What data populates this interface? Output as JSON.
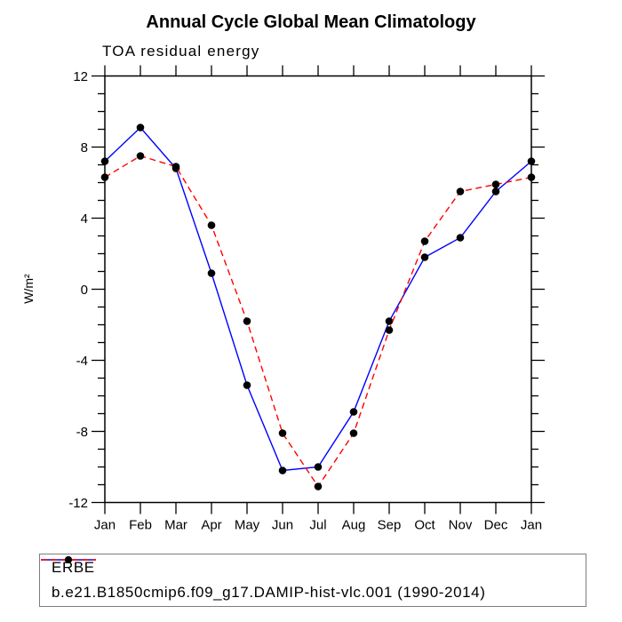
{
  "chart_data": {
    "type": "line",
    "title": "Annual Cycle Global Mean Climatology",
    "subtitle": "TOA residual energy",
    "ylabel": "W/m²",
    "xlabel": "",
    "categories": [
      "Jan",
      "Feb",
      "Mar",
      "Apr",
      "May",
      "Jun",
      "Jul",
      "Aug",
      "Sep",
      "Oct",
      "Nov",
      "Dec",
      "Jan"
    ],
    "ylim": [
      -12,
      12
    ],
    "ytick_major_labels": [
      12,
      8,
      4,
      0,
      -4,
      -8,
      -12
    ],
    "ytick_minor_step": 1,
    "grid": false,
    "legend_position": "bottom",
    "frame_color": "#000000",
    "marker_color": "#000000",
    "series": [
      {
        "name": "ERBE",
        "color": "#0000ff",
        "line_style": "solid",
        "values": [
          7.2,
          9.1,
          6.8,
          0.9,
          -5.4,
          -10.2,
          -10.0,
          -6.9,
          -1.8,
          1.8,
          2.9,
          5.5,
          7.2
        ]
      },
      {
        "name": "b.e21.B1850cmip6.f09_g17.DAMIP-hist-vlc.001 (1990-2014)",
        "color": "#ff0000",
        "line_style": "dashed",
        "values": [
          6.3,
          7.5,
          6.9,
          3.6,
          -1.8,
          -8.1,
          -11.1,
          -8.1,
          -2.3,
          2.7,
          5.5,
          5.9,
          6.3
        ]
      }
    ]
  }
}
